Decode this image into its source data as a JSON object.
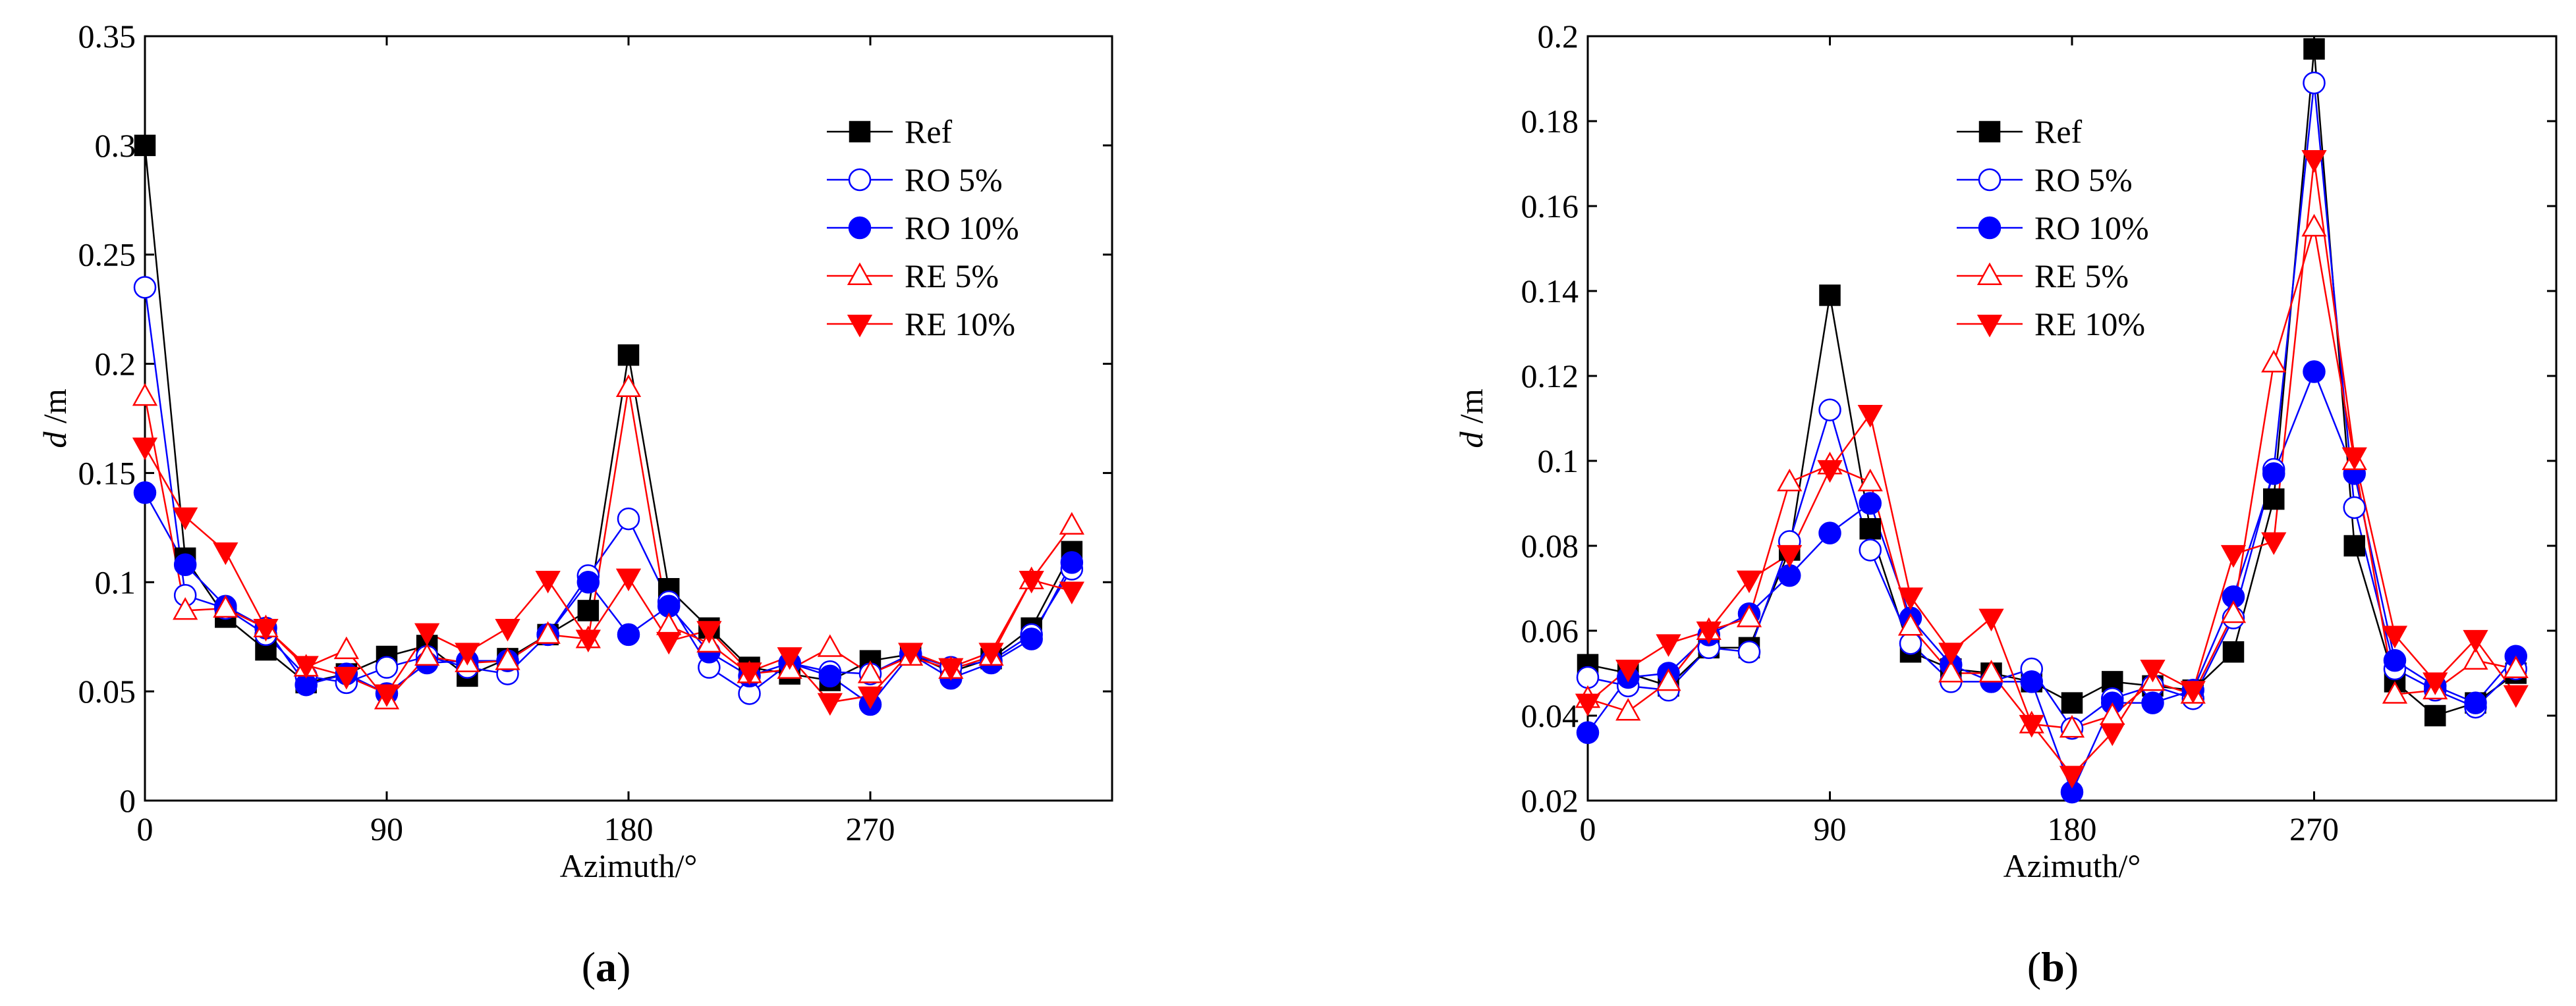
{
  "chart_data": [
    {
      "type": "line",
      "panel_label": "(a)",
      "xlabel": "Azimuth/°",
      "ylabel": "d /m",
      "xlim": [
        0,
        360
      ],
      "ylim": [
        0,
        0.35
      ],
      "xticks": [
        0,
        90,
        180,
        270
      ],
      "yticks": [
        0,
        0.05,
        0.1,
        0.15,
        0.2,
        0.25,
        0.3,
        0.35
      ],
      "ytick_labels": [
        "0",
        "0.05",
        "0.1",
        "0.15",
        "0.2",
        "0.25",
        "0.3",
        "0.35"
      ],
      "legend_position": "top-right",
      "x": [
        0,
        15,
        30,
        45,
        60,
        75,
        90,
        105,
        120,
        135,
        150,
        165,
        180,
        195,
        210,
        225,
        240,
        255,
        270,
        285,
        300,
        315,
        330,
        345
      ],
      "series": [
        {
          "name": "Ref",
          "color": "#000000",
          "marker": "square",
          "filled": true,
          "values": [
            0.3,
            0.111,
            0.084,
            0.069,
            0.054,
            0.058,
            0.066,
            0.071,
            0.057,
            0.065,
            0.076,
            0.087,
            0.204,
            0.097,
            0.079,
            0.061,
            0.058,
            0.055,
            0.064,
            0.067,
            0.059,
            0.065,
            0.079,
            0.114
          ]
        },
        {
          "name": "RO 5%",
          "color": "#0000ff",
          "marker": "circle",
          "filled": false,
          "values": [
            0.235,
            0.094,
            0.088,
            0.076,
            0.057,
            0.054,
            0.061,
            0.066,
            0.061,
            0.058,
            0.076,
            0.103,
            0.129,
            0.091,
            0.061,
            0.049,
            0.063,
            0.059,
            0.058,
            0.067,
            0.061,
            0.064,
            0.076,
            0.106
          ]
        },
        {
          "name": "RO 10%",
          "color": "#0000ff",
          "marker": "circle",
          "filled": true,
          "values": [
            0.141,
            0.108,
            0.089,
            0.079,
            0.053,
            0.058,
            0.049,
            0.063,
            0.064,
            0.064,
            0.076,
            0.1,
            0.076,
            0.089,
            0.068,
            0.057,
            0.063,
            0.057,
            0.044,
            0.067,
            0.056,
            0.063,
            0.074,
            0.109
          ]
        },
        {
          "name": "RE 5%",
          "color": "#ff0000",
          "marker": "triangle-up",
          "filled": false,
          "values": [
            0.185,
            0.087,
            0.088,
            0.079,
            0.061,
            0.069,
            0.046,
            0.066,
            0.063,
            0.064,
            0.076,
            0.074,
            0.189,
            0.08,
            0.072,
            0.058,
            0.06,
            0.07,
            0.058,
            0.066,
            0.06,
            0.066,
            0.101,
            0.126
          ]
        },
        {
          "name": "RE 10%",
          "color": "#ff0000",
          "marker": "triangle-down",
          "filled": true,
          "values": [
            0.162,
            0.13,
            0.114,
            0.079,
            0.062,
            0.057,
            0.049,
            0.077,
            0.068,
            0.079,
            0.101,
            0.074,
            0.102,
            0.073,
            0.078,
            0.059,
            0.066,
            0.045,
            0.048,
            0.068,
            0.061,
            0.068,
            0.101,
            0.096
          ]
        }
      ]
    },
    {
      "type": "line",
      "panel_label": "(b)",
      "xlabel": "Azimuth/°",
      "ylabel": "d /m",
      "xlim": [
        0,
        360
      ],
      "ylim": [
        0.02,
        0.2
      ],
      "xticks": [
        0,
        90,
        180,
        270
      ],
      "yticks": [
        0.02,
        0.04,
        0.06,
        0.08,
        0.1,
        0.12,
        0.14,
        0.16,
        0.18,
        0.2
      ],
      "ytick_labels": [
        "0.02",
        "0.04",
        "0.06",
        "0.08",
        "0.1",
        "0.12",
        "0.14",
        "0.16",
        "0.18",
        "0.2"
      ],
      "legend_position": "top-left",
      "x": [
        0,
        15,
        30,
        45,
        60,
        75,
        90,
        105,
        120,
        135,
        150,
        165,
        180,
        195,
        210,
        225,
        240,
        255,
        270,
        285,
        300,
        315,
        330,
        345
      ],
      "series": [
        {
          "name": "Ref",
          "color": "#000000",
          "marker": "square",
          "filled": true,
          "values": [
            0.052,
            0.05,
            0.047,
            0.056,
            0.056,
            0.079,
            0.139,
            0.084,
            0.055,
            0.051,
            0.05,
            0.048,
            0.043,
            0.048,
            0.047,
            0.046,
            0.055,
            0.091,
            0.197,
            0.08,
            0.048,
            0.04,
            0.043,
            0.05
          ]
        },
        {
          "name": "RO 5%",
          "color": "#0000ff",
          "marker": "circle",
          "filled": false,
          "values": [
            0.049,
            0.047,
            0.046,
            0.056,
            0.055,
            0.081,
            0.112,
            0.079,
            0.057,
            0.048,
            0.048,
            0.051,
            0.037,
            0.044,
            0.047,
            0.044,
            0.063,
            0.098,
            0.189,
            0.089,
            0.051,
            0.046,
            0.042,
            0.051
          ]
        },
        {
          "name": "RO 10%",
          "color": "#0000ff",
          "marker": "circle",
          "filled": true,
          "values": [
            0.036,
            0.049,
            0.05,
            0.059,
            0.064,
            0.073,
            0.083,
            0.09,
            0.063,
            0.052,
            0.048,
            0.048,
            0.022,
            0.043,
            0.043,
            0.046,
            0.068,
            0.097,
            0.121,
            0.097,
            0.053,
            0.047,
            0.043,
            0.054
          ]
        },
        {
          "name": "RE 5%",
          "color": "#ff0000",
          "marker": "triangle-up",
          "filled": false,
          "values": [
            0.044,
            0.041,
            0.048,
            0.06,
            0.063,
            0.095,
            0.099,
            0.095,
            0.061,
            0.05,
            0.05,
            0.038,
            0.037,
            0.04,
            0.048,
            0.045,
            0.064,
            0.123,
            0.155,
            0.1,
            0.045,
            0.046,
            0.053,
            0.051
          ]
        },
        {
          "name": "RE 10%",
          "color": "#ff0000",
          "marker": "triangle-down",
          "filled": true,
          "values": [
            0.043,
            0.051,
            0.057,
            0.06,
            0.072,
            0.078,
            0.098,
            0.111,
            0.068,
            0.055,
            0.063,
            0.038,
            0.026,
            0.036,
            0.051,
            0.046,
            0.078,
            0.081,
            0.171,
            0.101,
            0.059,
            0.048,
            0.058,
            0.045
          ]
        }
      ]
    }
  ]
}
